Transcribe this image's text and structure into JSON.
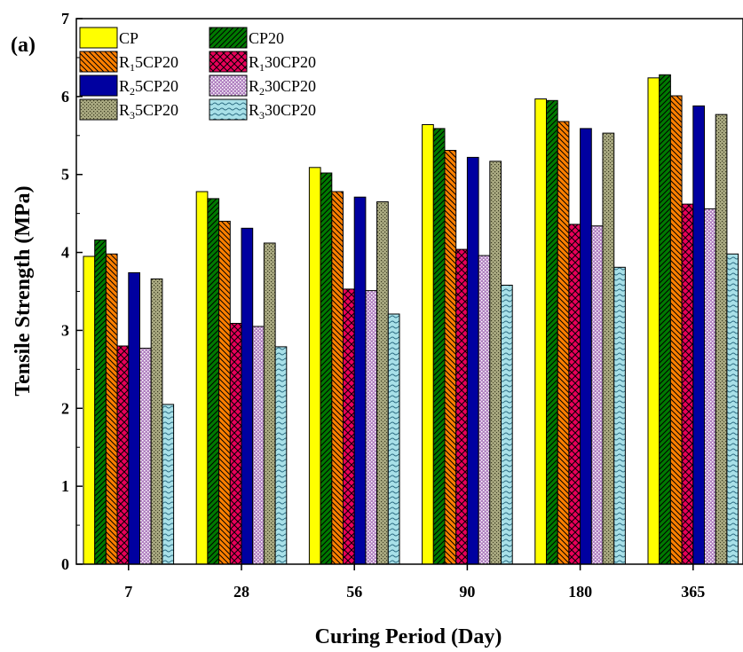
{
  "chart_data": {
    "type": "bar",
    "panel_label": "(a)",
    "xlabel": "Curing Period (Day)",
    "ylabel": "Tensile Strength (MPa)",
    "ylim": [
      0,
      7
    ],
    "yticks": [
      "0",
      "1",
      "2",
      "3",
      "4",
      "5",
      "6",
      "7"
    ],
    "categories": [
      "7",
      "28",
      "56",
      "90",
      "180",
      "365"
    ],
    "legend_position": "top-left",
    "grid": false,
    "series": [
      {
        "name": "CP",
        "legend_main": "CP",
        "legend_sub": "",
        "legend_rest": "",
        "color": "#ffff00",
        "pattern": "solid",
        "values": [
          3.95,
          4.78,
          5.09,
          5.64,
          5.97,
          6.24
        ]
      },
      {
        "name": "CP20",
        "legend_main": "CP20",
        "legend_sub": "",
        "legend_rest": "",
        "color": "#007a00",
        "pattern": "hatch-right",
        "values": [
          4.16,
          4.69,
          5.02,
          5.59,
          5.95,
          6.28
        ]
      },
      {
        "name": "R15CP20",
        "legend_main": "R",
        "legend_sub": "1",
        "legend_rest": "5CP20",
        "color": "#ff8000",
        "pattern": "hatch-left",
        "values": [
          3.98,
          4.4,
          4.78,
          5.31,
          5.68,
          6.01
        ]
      },
      {
        "name": "R130CP20",
        "legend_main": "R",
        "legend_sub": "1",
        "legend_rest": "30CP20",
        "color": "#e8005a",
        "pattern": "crosshatch",
        "values": [
          2.8,
          3.09,
          3.53,
          4.04,
          4.36,
          4.62
        ]
      },
      {
        "name": "R25CP20",
        "legend_main": "R",
        "legend_sub": "2",
        "legend_rest": "5CP20",
        "color": "#0000a0",
        "pattern": "solid",
        "values": [
          3.74,
          4.31,
          4.71,
          5.22,
          5.59,
          5.88
        ]
      },
      {
        "name": "R230CP20",
        "legend_main": "R",
        "legend_sub": "2",
        "legend_rest": "30CP20",
        "color": "#b080c0",
        "pattern": "dots",
        "values": [
          2.77,
          3.05,
          3.51,
          3.96,
          4.34,
          4.56
        ]
      },
      {
        "name": "R35CP20",
        "legend_main": "R",
        "legend_sub": "3",
        "legend_rest": "5CP20",
        "color": "#a8a880",
        "pattern": "dots-dense",
        "values": [
          3.66,
          4.12,
          4.65,
          5.17,
          5.53,
          5.77
        ]
      },
      {
        "name": "R330CP20",
        "legend_main": "R",
        "legend_sub": "3",
        "legend_rest": "30CP20",
        "color": "#a8e0e8",
        "pattern": "waves",
        "values": [
          2.05,
          2.79,
          3.21,
          3.58,
          3.81,
          3.98
        ]
      }
    ]
  }
}
